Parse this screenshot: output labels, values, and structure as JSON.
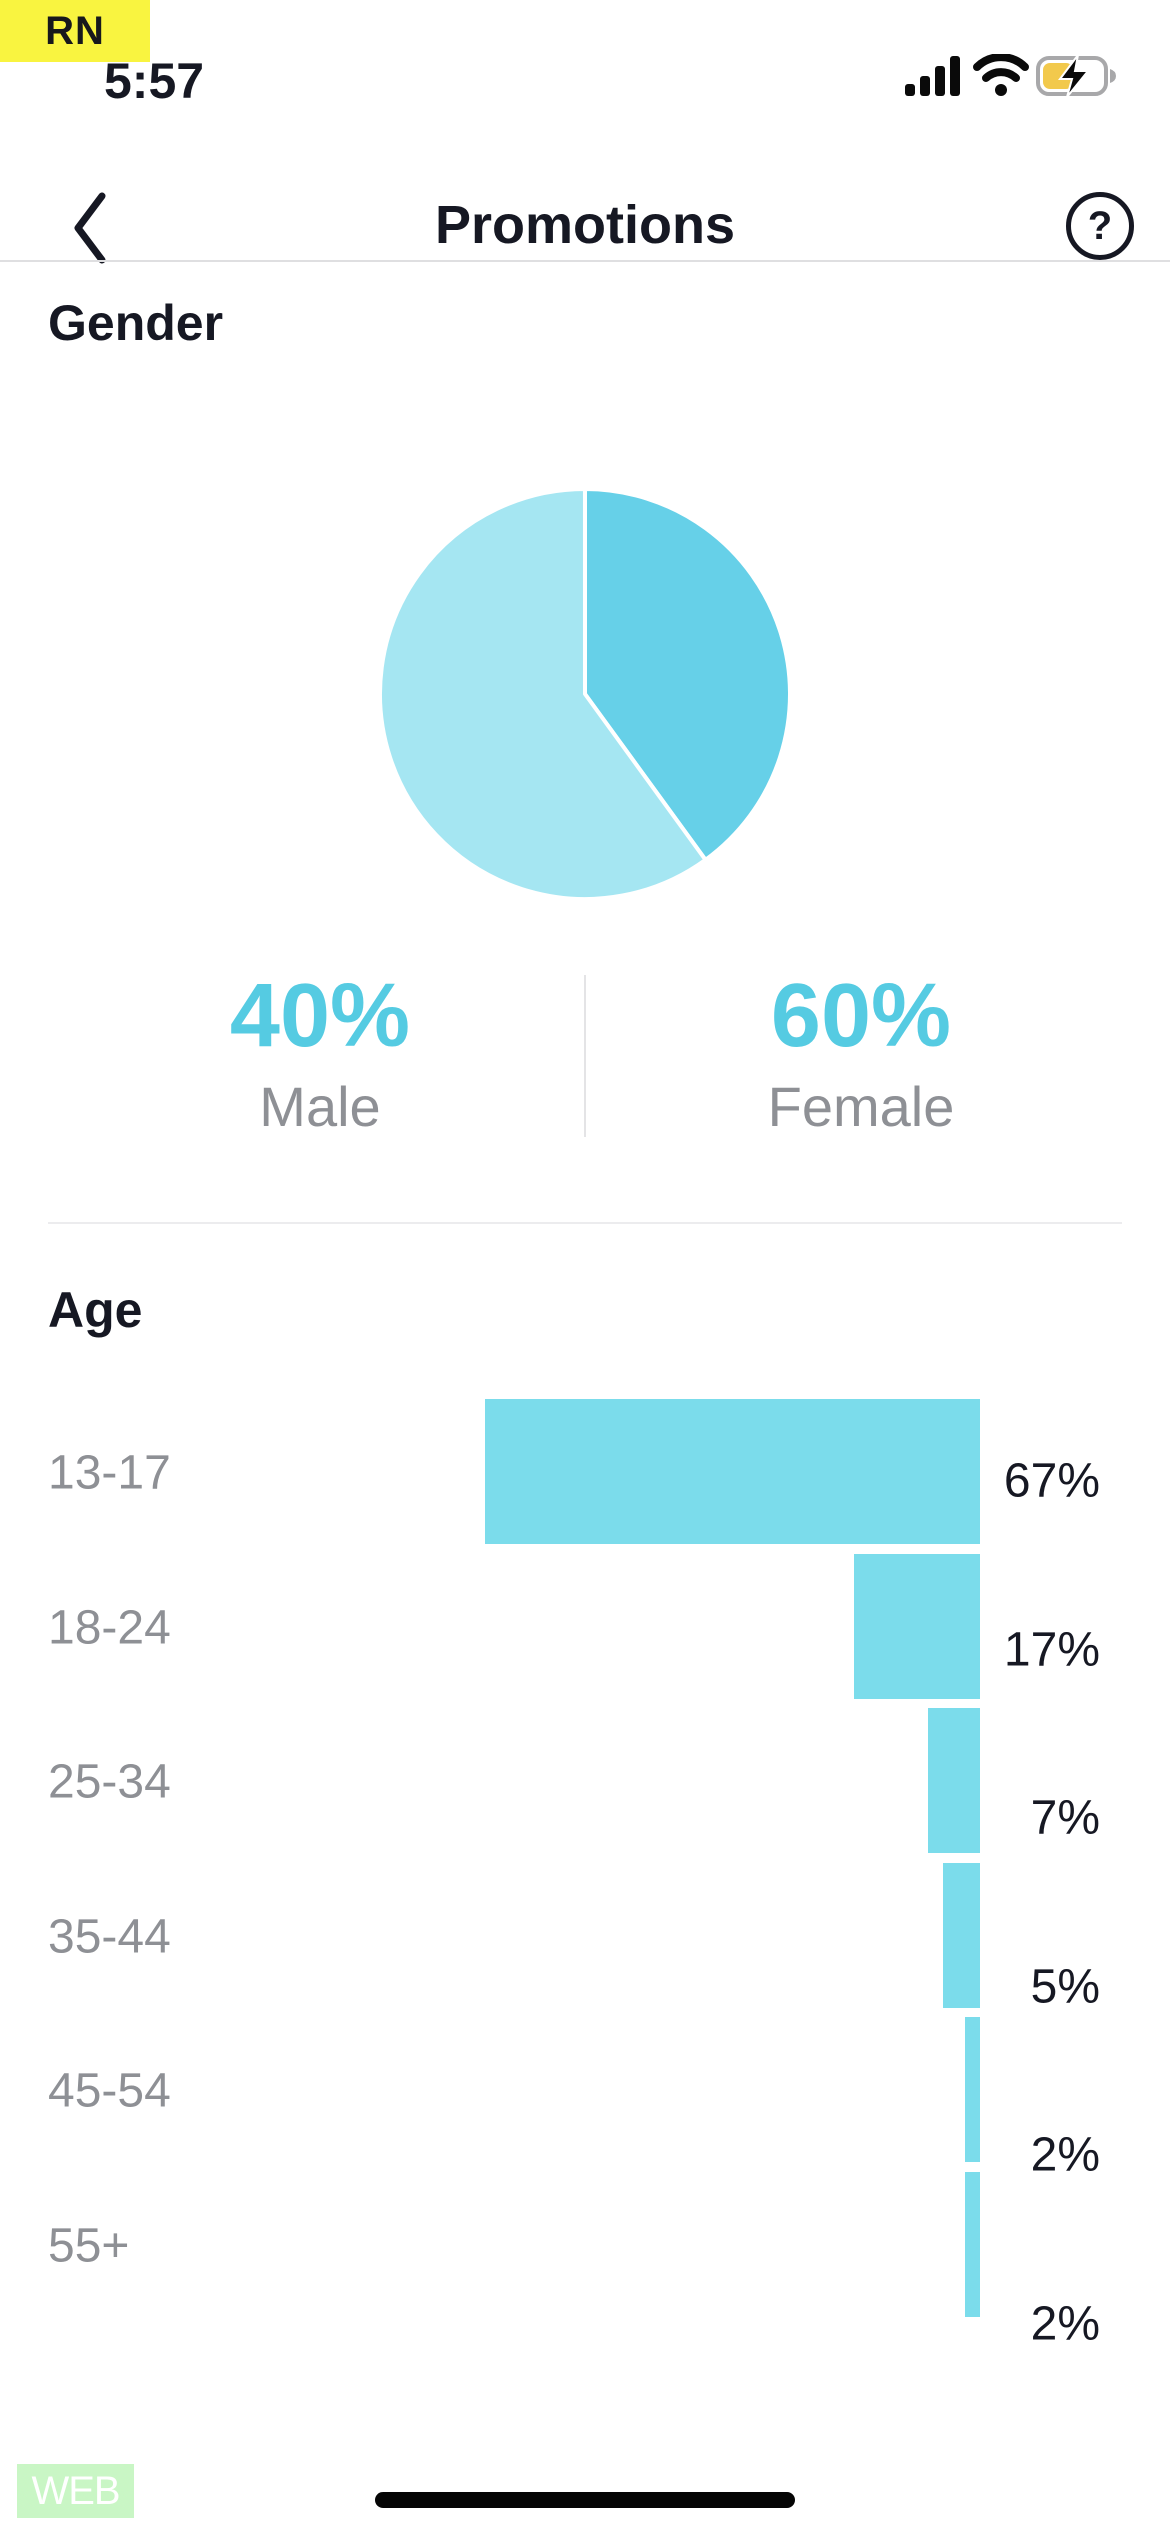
{
  "status_bar": {
    "badge_label": "RN",
    "time": "5:57",
    "icons": [
      "cellular-signal-icon",
      "wifi-icon",
      "battery-charging-icon"
    ]
  },
  "header": {
    "title": "Promotions",
    "help_label": "?"
  },
  "gender": {
    "heading": "Gender",
    "male": {
      "value": "40%",
      "label": "Male"
    },
    "female": {
      "value": "60%",
      "label": "Female"
    }
  },
  "age": {
    "heading": "Age"
  },
  "footer": {
    "web_label": "WEB"
  },
  "colors": {
    "accent_text": "#55CBE2",
    "pie_male": "#66D0E8",
    "pie_female": "#A5E6F2",
    "bar": "#7BDCEB",
    "text_dark": "#161823",
    "text_gray": "#8E9095",
    "rn_badge_bg": "#F9F440",
    "web_badge_bg": "#C9F6C5",
    "battery_charge_fill": "#F2C94C"
  },
  "chart_data": [
    {
      "type": "pie",
      "title": "Gender",
      "slices": [
        {
          "label": "Male",
          "value": 40,
          "display": "40%",
          "color": "#66D0E8"
        },
        {
          "label": "Female",
          "value": 60,
          "display": "60%",
          "color": "#A5E6F2"
        }
      ],
      "start_angle_deg": -90,
      "direction": "clockwise",
      "separator_stroke": "#ffffff",
      "legend_position": "below"
    },
    {
      "type": "bar",
      "title": "Age",
      "orientation": "horizontal",
      "alignment": "right",
      "categories": [
        "13-17",
        "18-24",
        "25-34",
        "35-44",
        "45-54",
        "55+"
      ],
      "values": [
        67,
        17,
        7,
        5,
        2,
        2
      ],
      "value_labels": [
        "67%",
        "17%",
        "7%",
        "5%",
        "2%",
        "2%"
      ],
      "bar_color": "#7BDCEB",
      "xlim": [
        0,
        67
      ],
      "grid": false
    }
  ]
}
